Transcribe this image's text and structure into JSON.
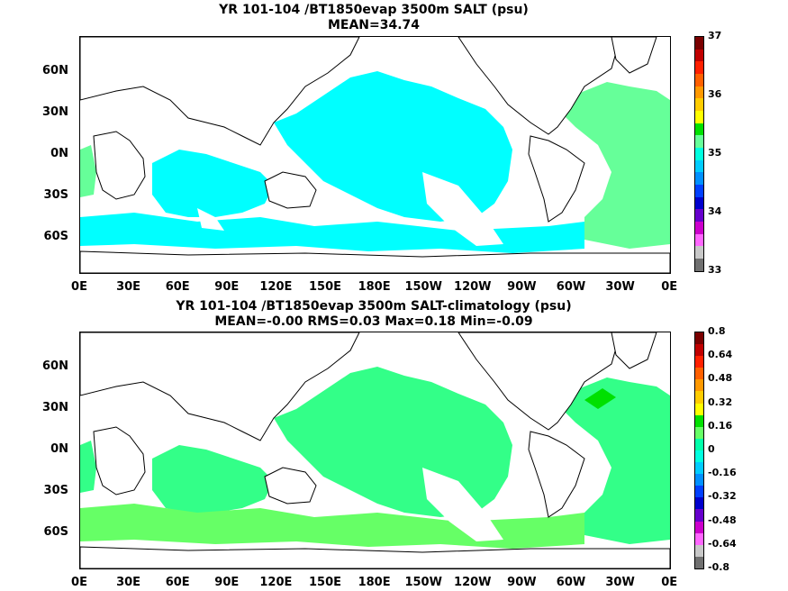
{
  "top": {
    "title": "YR 101-104 /BT1850evap 3500m SALT (psu)",
    "subtitle": "MEAN=34.74",
    "colorbar_labels": [
      "37",
      "36",
      "35",
      "34",
      "33"
    ],
    "colorbar_colors": [
      "#7a0000",
      "#c00000",
      "#ff2000",
      "#ff6000",
      "#ff9900",
      "#ffcc00",
      "#ffff00",
      "#00e000",
      "#66ff99",
      "#00ffe0",
      "#00ccff",
      "#0090ff",
      "#0040ff",
      "#0000cc",
      "#6600cc",
      "#cc00cc",
      "#ff66ff",
      "#c8c8c8",
      "#707070"
    ]
  },
  "bottom": {
    "title": "YR 101-104 /BT1850evap 3500m SALT-climatology (psu)",
    "subtitle": "MEAN=-0.00   RMS=0.03   Max=0.18   Min=-0.09",
    "colorbar_labels": [
      "0.8",
      "0.64",
      "0.48",
      "0.32",
      "0.16",
      "0",
      "-0.16",
      "-0.32",
      "-0.48",
      "-0.64",
      "-0.8"
    ],
    "colorbar_colors": [
      "#7a0000",
      "#c00000",
      "#ff2000",
      "#ff6000",
      "#ff9900",
      "#ffcc00",
      "#ffff00",
      "#00e000",
      "#66ff66",
      "#00ffaa",
      "#00ffe0",
      "#00ccff",
      "#0090ff",
      "#0040ff",
      "#0000cc",
      "#6600cc",
      "#cc00cc",
      "#ff66ff",
      "#c8c8c8",
      "#707070"
    ]
  },
  "lat_labels": [
    "60N",
    "30N",
    "0N",
    "30S",
    "60S"
  ],
  "lon_labels": [
    "0E",
    "30E",
    "60E",
    "90E",
    "120E",
    "150E",
    "180E",
    "150W",
    "120W",
    "90W",
    "60W",
    "30W",
    "0E"
  ],
  "fill_colors": {
    "top_main": "#00ffff",
    "top_atlantic": "#66ff99",
    "bottom_main": "#33ff88",
    "bottom_light": "#66ff66",
    "bottom_bright": "#00e000"
  }
}
